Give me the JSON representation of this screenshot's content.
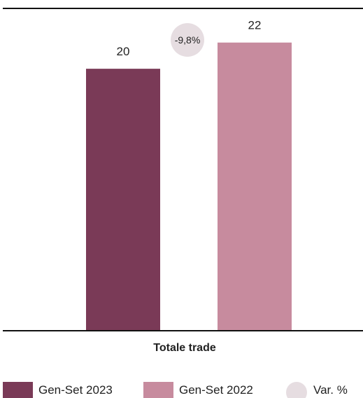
{
  "chart_data": {
    "type": "bar",
    "categories": [
      "Totale trade"
    ],
    "series": [
      {
        "name": "Gen-Set 2023",
        "values": [
          20
        ],
        "color": "#7a3a57"
      },
      {
        "name": "Gen-Set 2022",
        "values": [
          22
        ],
        "color": "#c78b9e"
      }
    ],
    "data_labels": [
      "20",
      "22"
    ],
    "variation": {
      "label": "Var. %",
      "value": "-9,8%",
      "color": "#e6dde1"
    },
    "ylim": [
      0,
      24.5
    ],
    "grid": false,
    "legend_position": "bottom-left",
    "title": "",
    "xlabel": "",
    "ylabel": ""
  }
}
